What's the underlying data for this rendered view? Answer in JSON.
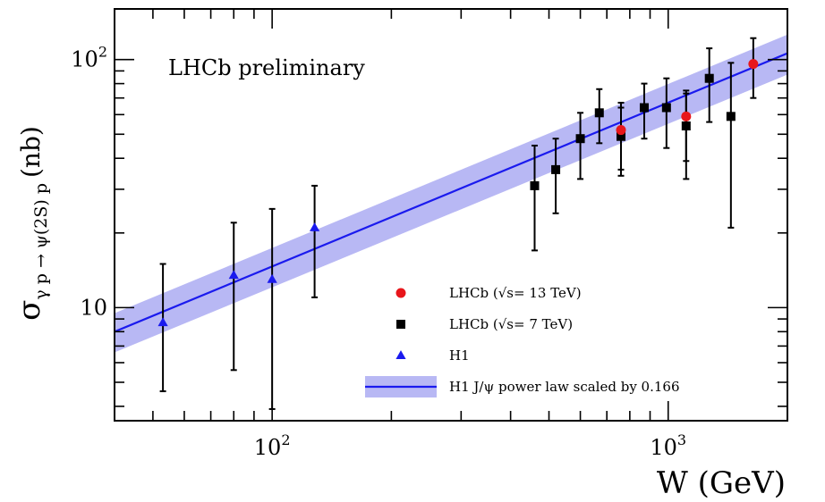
{
  "chart_data": {
    "type": "scatter",
    "title": "",
    "annotation": "LHCb preliminary",
    "xlabel": "W (GeV)",
    "ylabel_main": "σ",
    "ylabel_sub": "γ p → ψ(2S) p",
    "ylabel_unit": "(nb)",
    "x_scale": "log",
    "y_scale": "log",
    "xlim": [
      40,
      2000
    ],
    "ylim": [
      3.5,
      160
    ],
    "x_ticks": [
      {
        "value": 100,
        "base": "10",
        "exp": "2"
      },
      {
        "value": 1000,
        "base": "10",
        "exp": "3"
      }
    ],
    "y_ticks": [
      {
        "value": 10,
        "base": "10",
        "exp": ""
      },
      {
        "value": 100,
        "base": "10",
        "exp": "2"
      }
    ],
    "grid": false,
    "legend_position": "bottom-right",
    "series": [
      {
        "name": "LHCb (√s= 13 TeV)",
        "marker": "circle",
        "color": "#e8161b",
        "points": [
          {
            "x": 760,
            "y": 52,
            "ylo": 36,
            "yhi": 67
          },
          {
            "x": 1110,
            "y": 59,
            "ylo": 39,
            "yhi": 75
          },
          {
            "x": 1640,
            "y": 96,
            "ylo": 70,
            "yhi": 122
          }
        ]
      },
      {
        "name": "LHCb (√s= 7 TeV)",
        "marker": "square",
        "color": "#000000",
        "points": [
          {
            "x": 460,
            "y": 31,
            "ylo": 17,
            "yhi": 45
          },
          {
            "x": 520,
            "y": 36,
            "ylo": 24,
            "yhi": 48
          },
          {
            "x": 600,
            "y": 48,
            "ylo": 33,
            "yhi": 61
          },
          {
            "x": 670,
            "y": 61,
            "ylo": 46,
            "yhi": 76
          },
          {
            "x": 760,
            "y": 49,
            "ylo": 34,
            "yhi": 64
          },
          {
            "x": 870,
            "y": 64,
            "ylo": 48,
            "yhi": 80
          },
          {
            "x": 990,
            "y": 64,
            "ylo": 44,
            "yhi": 84
          },
          {
            "x": 1110,
            "y": 54,
            "ylo": 33,
            "yhi": 73
          },
          {
            "x": 1270,
            "y": 84,
            "ylo": 56,
            "yhi": 111
          },
          {
            "x": 1440,
            "y": 59,
            "ylo": 21,
            "yhi": 97
          }
        ]
      },
      {
        "name": "H1",
        "marker": "triangle",
        "color": "#1a1aee",
        "points": [
          {
            "x": 53,
            "y": 8.7,
            "ylo": 4.6,
            "yhi": 15
          },
          {
            "x": 80,
            "y": 13.5,
            "ylo": 5.6,
            "yhi": 22
          },
          {
            "x": 100,
            "y": 13.0,
            "ylo": 3.9,
            "yhi": 25
          },
          {
            "x": 128,
            "y": 21,
            "ylo": 11,
            "yhi": 31
          }
        ]
      }
    ],
    "fit": {
      "name": "H1 J/ψ power law scaled by 0.166",
      "color": "#1a1aee",
      "band_color": "#b8b8f4",
      "x": [
        40,
        2000
      ],
      "y": [
        8.0,
        106
      ],
      "band_lo": [
        6.6,
        87
      ],
      "band_hi": [
        9.5,
        126
      ]
    }
  }
}
